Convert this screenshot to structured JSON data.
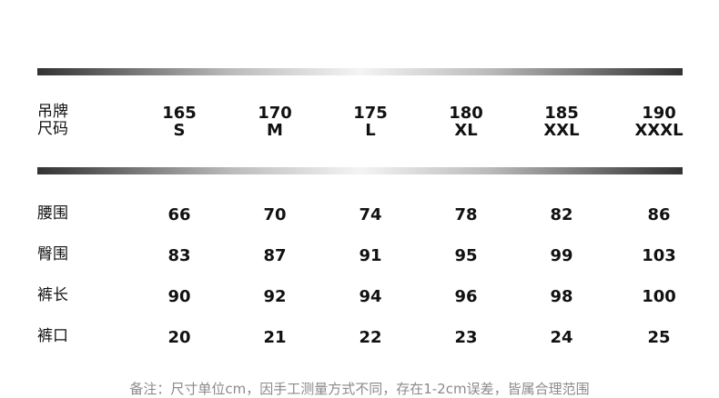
{
  "header": {
    "label_line1": "吊牌",
    "label_line2": "尺码",
    "sizes": [
      {
        "height": "165",
        "size": "S"
      },
      {
        "height": "170",
        "size": "M"
      },
      {
        "height": "175",
        "size": "L"
      },
      {
        "height": "180",
        "size": "XL"
      },
      {
        "height": "185",
        "size": "XXL"
      },
      {
        "height": "190",
        "size": "XXXL"
      }
    ]
  },
  "rows": [
    {
      "label": "腰围",
      "values": [
        "66",
        "70",
        "74",
        "78",
        "82",
        "86"
      ]
    },
    {
      "label": "臀围",
      "values": [
        "83",
        "87",
        "91",
        "95",
        "99",
        "103"
      ]
    },
    {
      "label": "裤长",
      "values": [
        "90",
        "92",
        "94",
        "96",
        "98",
        "100"
      ]
    },
    {
      "label": "裤口",
      "values": [
        "20",
        "21",
        "22",
        "23",
        "24",
        "25"
      ]
    }
  ],
  "footnote": "备注：尺寸单位cm，因手工测量方式不同，存在1-2cm误差，皆属合理范围"
}
